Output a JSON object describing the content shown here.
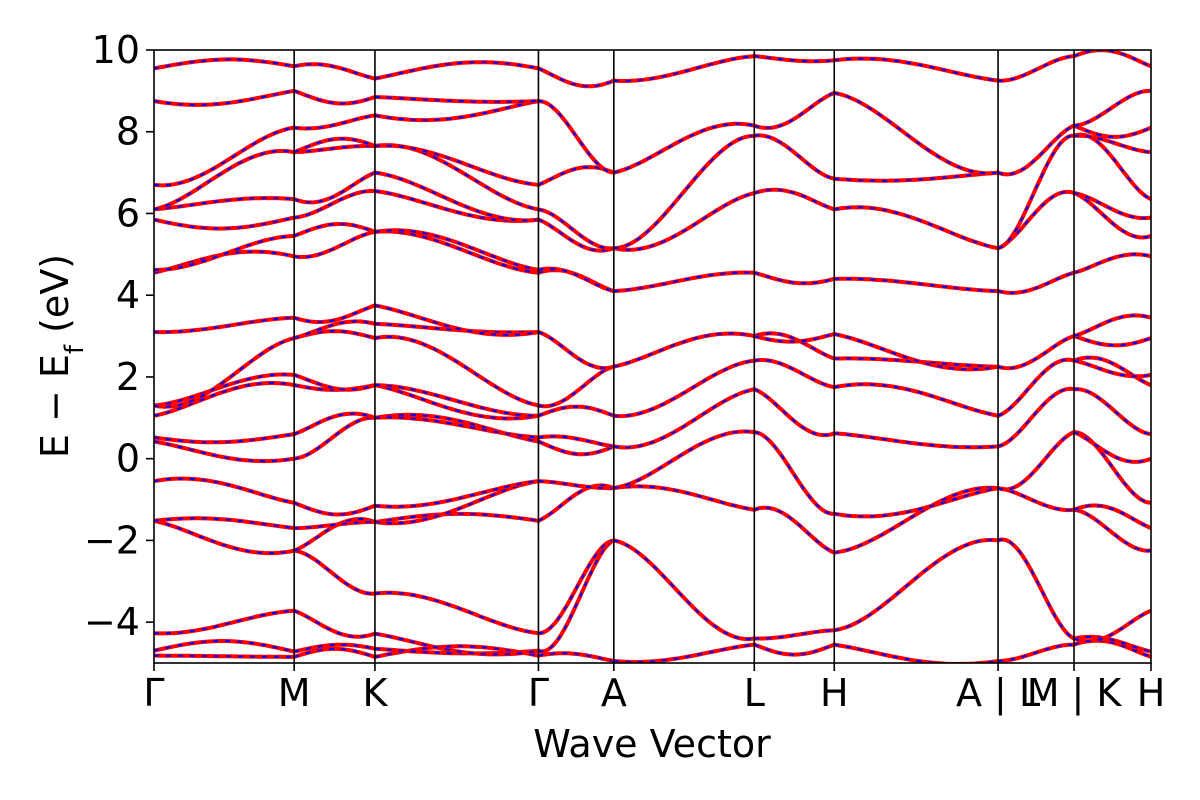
{
  "chart_data": {
    "type": "line",
    "title": "",
    "xlabel": "Wave Vector",
    "ylabel": "E − E",
    "ylabel_subscript": "f",
    "ylabel_unit": " (eV)",
    "ylim": [
      -5,
      10
    ],
    "yticks": [
      -4,
      -2,
      0,
      2,
      4,
      6,
      8,
      10
    ],
    "ytick_labels": [
      "−4",
      "−2",
      "0",
      "2",
      "4",
      "6",
      "8",
      "10"
    ],
    "grid": false,
    "legend": "none",
    "x_range": [
      0,
      1
    ],
    "kpath_ticks": [
      {
        "label": "Γ",
        "x": 0.0
      },
      {
        "label": "M",
        "x": 0.1406
      },
      {
        "label": "K",
        "x": 0.2216
      },
      {
        "label": "Γ",
        "x": 0.3856
      },
      {
        "label": "A",
        "x": 0.4612
      },
      {
        "label": "L",
        "x": 0.6021
      },
      {
        "label": "H",
        "x": 0.6823
      },
      {
        "label": "A | L",
        "x": 0.8466
      },
      {
        "label": "M | K",
        "x": 0.9228
      },
      {
        "label": "H",
        "x": 1.0
      }
    ],
    "segment_breaks": [
      0.8466,
      0.9228
    ],
    "series": [
      {
        "style": "solid",
        "color": "#ff0000"
      },
      {
        "style": "dashed",
        "color": "#0000ff"
      }
    ],
    "bands_at_k": {
      "Γ": [
        -4.82,
        -4.7,
        -4.27,
        -1.52,
        -0.55,
        0.42,
        0.52,
        1.05,
        1.3,
        3.1,
        4.55,
        4.62,
        5.85,
        6.1,
        6.7,
        8.75,
        9.55
      ],
      "M": [
        -4.85,
        -4.72,
        -3.72,
        -2.25,
        -1.7,
        -1.08,
        0.0,
        0.6,
        1.8,
        2.05,
        2.95,
        3.45,
        4.95,
        5.45,
        5.9,
        6.35,
        7.5,
        8.1,
        9.0,
        9.6
      ],
      "K": [
        -4.85,
        -4.65,
        -4.28,
        -3.3,
        -1.55,
        -1.55,
        -1.15,
        1.0,
        1.0,
        1.8,
        1.8,
        2.95,
        3.3,
        3.75,
        5.55,
        5.55,
        6.55,
        7.0,
        7.65,
        7.65,
        8.4,
        8.85,
        9.3
      ],
      "Γ2": [
        -4.82,
        -4.7,
        -4.27,
        -1.52,
        -0.55,
        0.42,
        0.52,
        1.05,
        1.3,
        3.1,
        4.55,
        4.62,
        5.85,
        6.1,
        6.7,
        8.75,
        9.55
      ],
      "A": [
        -4.95,
        -2.0,
        -0.72,
        0.3,
        1.05,
        2.25,
        4.1,
        5.15,
        7.0,
        9.25
      ],
      "L": [
        -4.55,
        -4.4,
        -1.25,
        0.65,
        1.7,
        2.4,
        3.0,
        4.55,
        6.5,
        7.9,
        8.15,
        9.85
      ],
      "H": [
        -4.55,
        -4.2,
        -2.3,
        -1.35,
        0.62,
        1.75,
        2.45,
        3.05,
        4.4,
        6.1,
        6.85,
        8.95,
        9.75
      ],
      "A2": [
        -4.95,
        -2.0,
        -0.72,
        0.3,
        1.05,
        2.25,
        4.1,
        5.15,
        7.0,
        9.25
      ],
      "L2": [
        -4.55,
        -4.4,
        -1.25,
        0.65,
        1.7,
        2.4,
        3.0,
        4.55,
        6.5,
        7.9,
        8.15,
        9.85
      ],
      "M2": [
        -4.85,
        -4.72,
        -3.72,
        -2.25,
        -1.7,
        -1.08,
        0.0,
        0.6,
        1.8,
        2.05,
        2.95,
        3.45,
        4.95,
        5.45,
        5.9,
        6.35,
        7.5,
        8.1,
        9.0,
        9.6
      ],
      "K2": [
        -4.85,
        -4.65,
        -4.28,
        -3.3,
        -1.55,
        -1.55,
        -1.15,
        1.0,
        1.0,
        1.8,
        1.8,
        2.95,
        3.3,
        3.75,
        5.55,
        5.55,
        6.55,
        7.0,
        7.65,
        7.65,
        8.4,
        8.85,
        9.3
      ],
      "H2": [
        -4.55,
        -4.2,
        -2.3,
        -1.35,
        0.62,
        1.75,
        2.45,
        3.05,
        4.4,
        6.1,
        6.85,
        8.95,
        9.75
      ]
    }
  }
}
